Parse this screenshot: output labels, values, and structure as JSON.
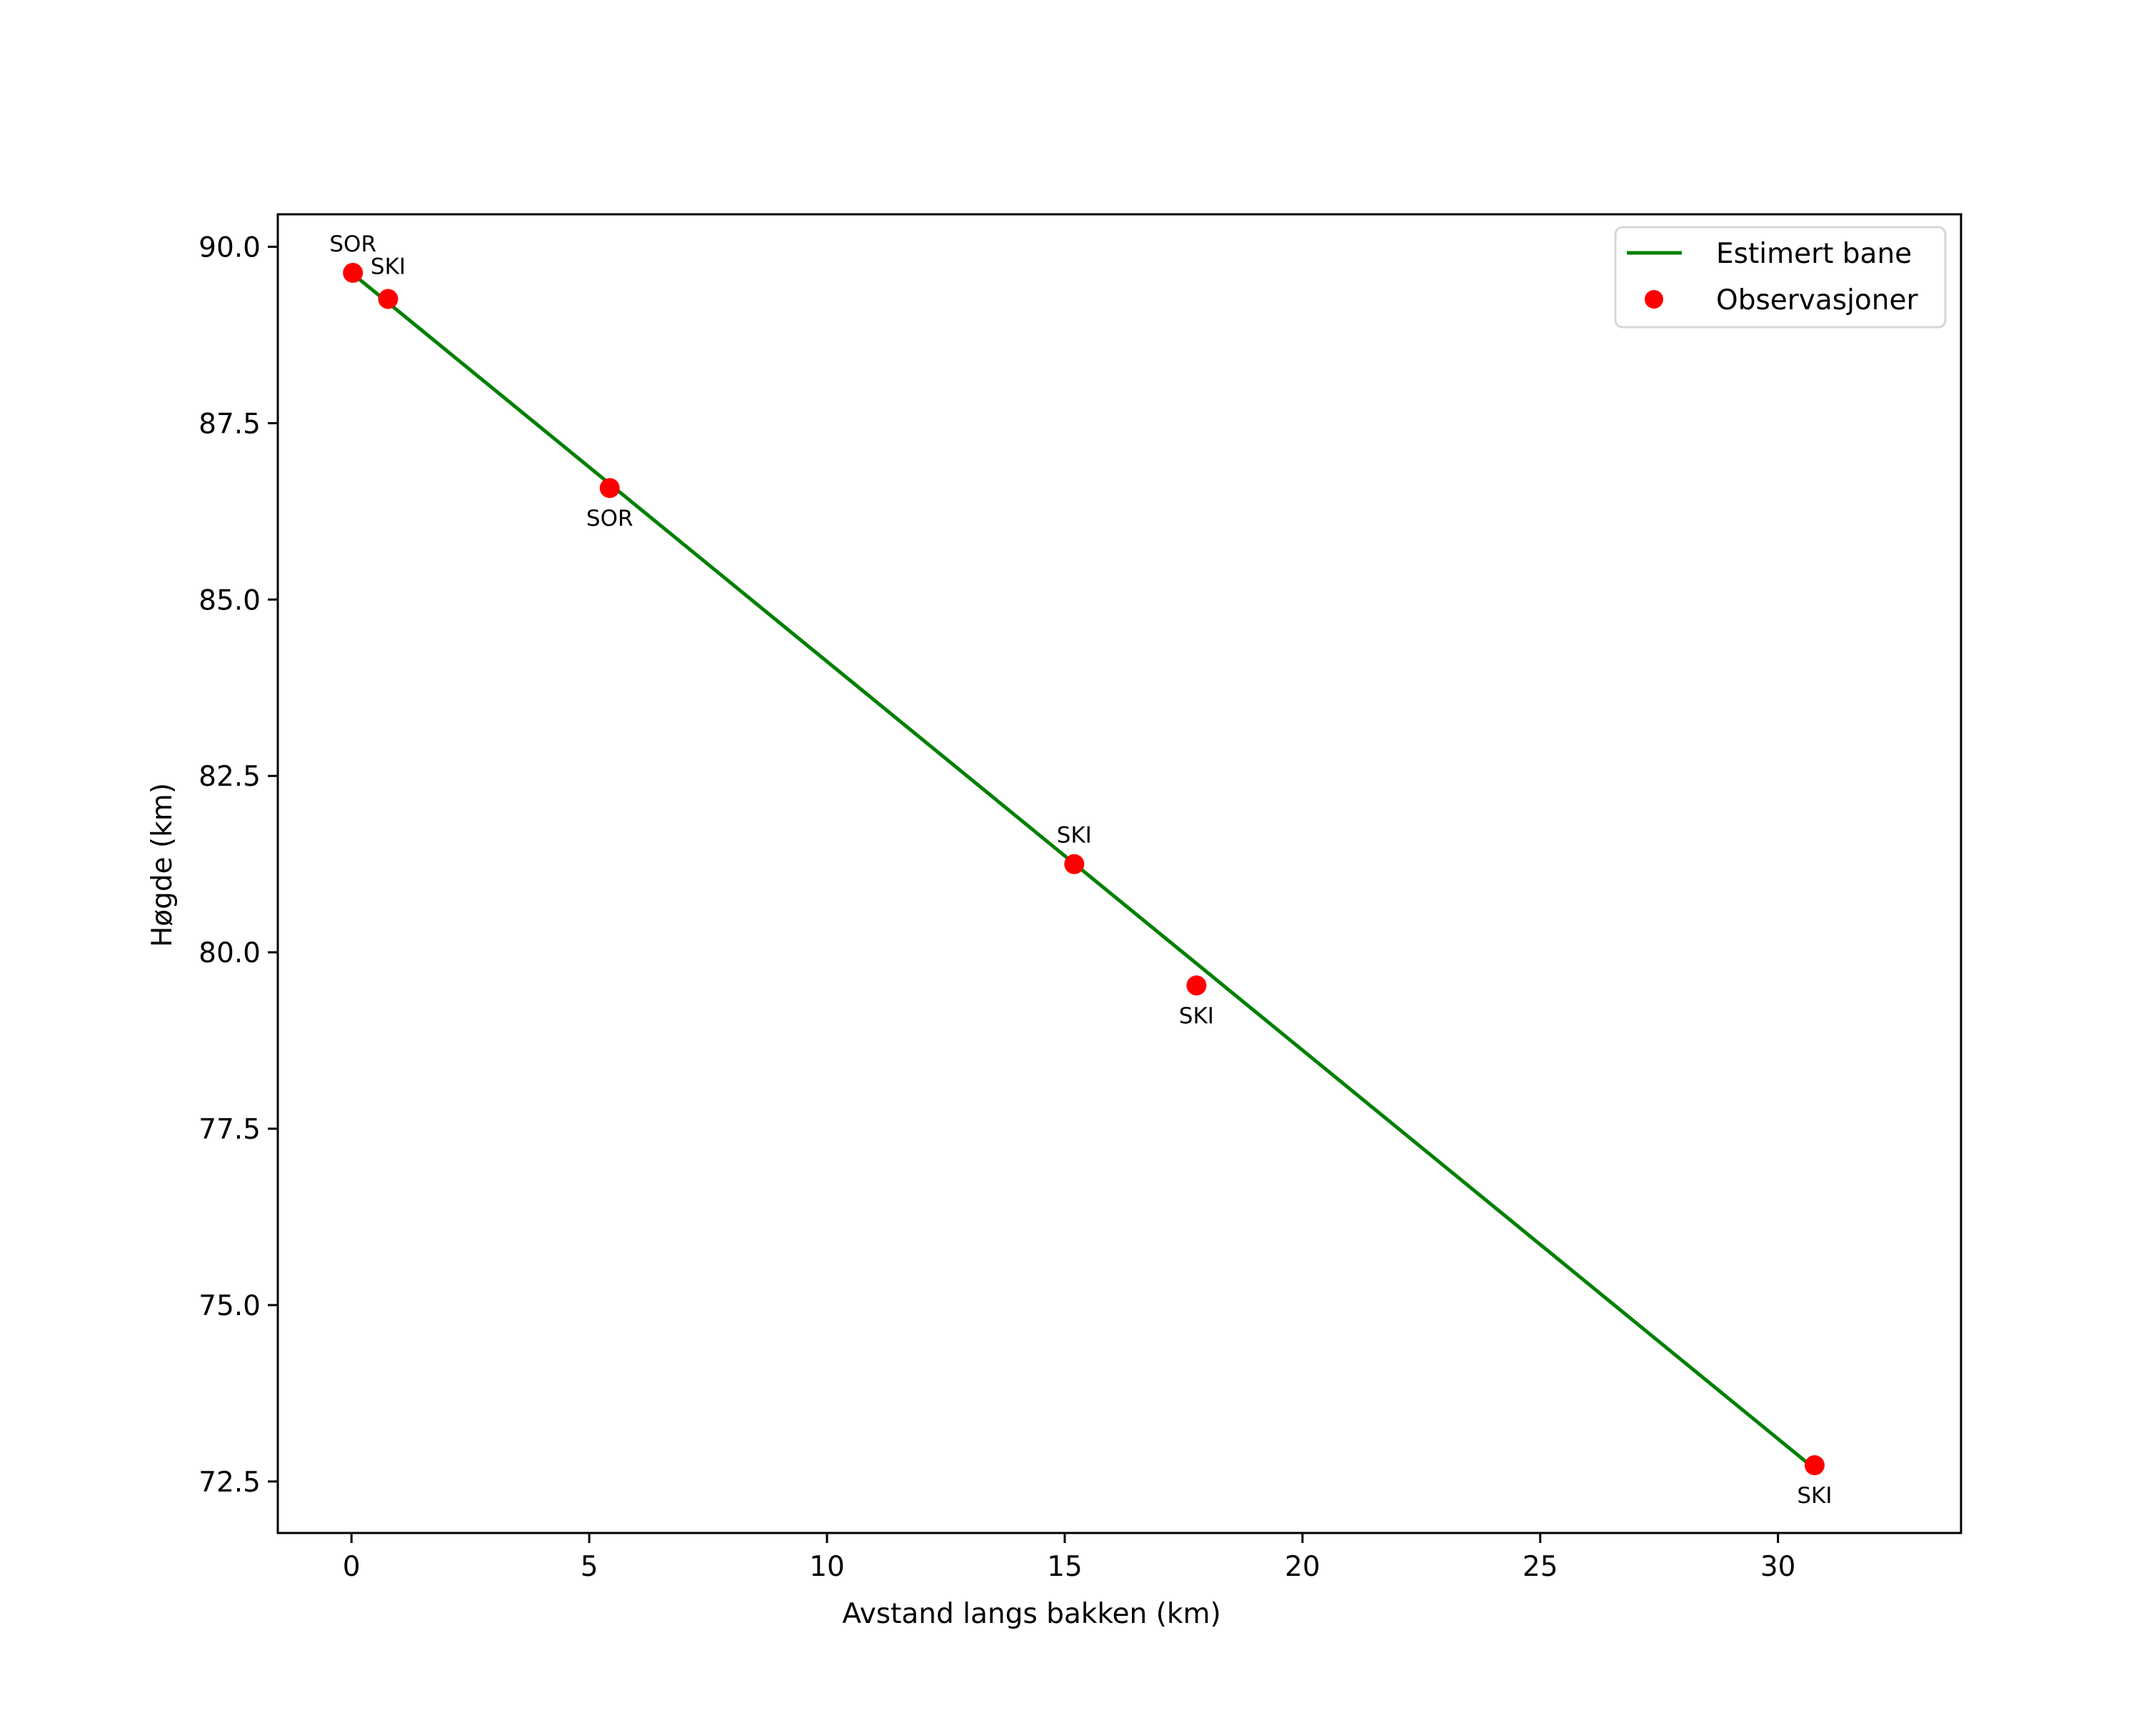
{
  "chart_data": {
    "type": "line",
    "title": "",
    "xlabel": "Avstand langs bakken (km)",
    "ylabel": "Høgde (km)",
    "xlim": [
      -1.55,
      33.85
    ],
    "ylim": [
      71.77,
      90.46
    ],
    "xticks": [
      0,
      5,
      10,
      15,
      20,
      25,
      30
    ],
    "xtick_labels": [
      "0",
      "5",
      "10",
      "15",
      "20",
      "25",
      "30"
    ],
    "yticks": [
      72.5,
      75.0,
      77.5,
      80.0,
      82.5,
      85.0,
      87.5,
      90.0
    ],
    "ytick_labels": [
      "72.5",
      "75.0",
      "77.5",
      "80.0",
      "82.5",
      "85.0",
      "87.5",
      "90.0"
    ],
    "grid": false,
    "legend_position": "upper right",
    "series": [
      {
        "name": "Estimert bane",
        "type": "line",
        "color": "#008000",
        "x": [
          0.0,
          30.77
        ],
        "y": [
          89.63,
          72.68
        ]
      },
      {
        "name": "Observasjoner",
        "type": "scatter",
        "color": "#ff0000",
        "x": [
          0.03,
          0.77,
          5.43,
          15.2,
          17.77,
          30.77
        ],
        "y": [
          89.63,
          89.26,
          86.58,
          81.25,
          79.53,
          72.73
        ],
        "labels": [
          "SOR",
          "SKI",
          "SOR",
          "SKI",
          "SKI",
          "SKI"
        ],
        "label_positions": [
          "above",
          "above-right",
          "below",
          "above",
          "below",
          "below"
        ]
      }
    ]
  },
  "legend": {
    "items": [
      {
        "label": "Estimert bane",
        "symbol": "line",
        "color": "#008000"
      },
      {
        "label": "Observasjoner",
        "symbol": "dot",
        "color": "#ff0000"
      }
    ]
  }
}
